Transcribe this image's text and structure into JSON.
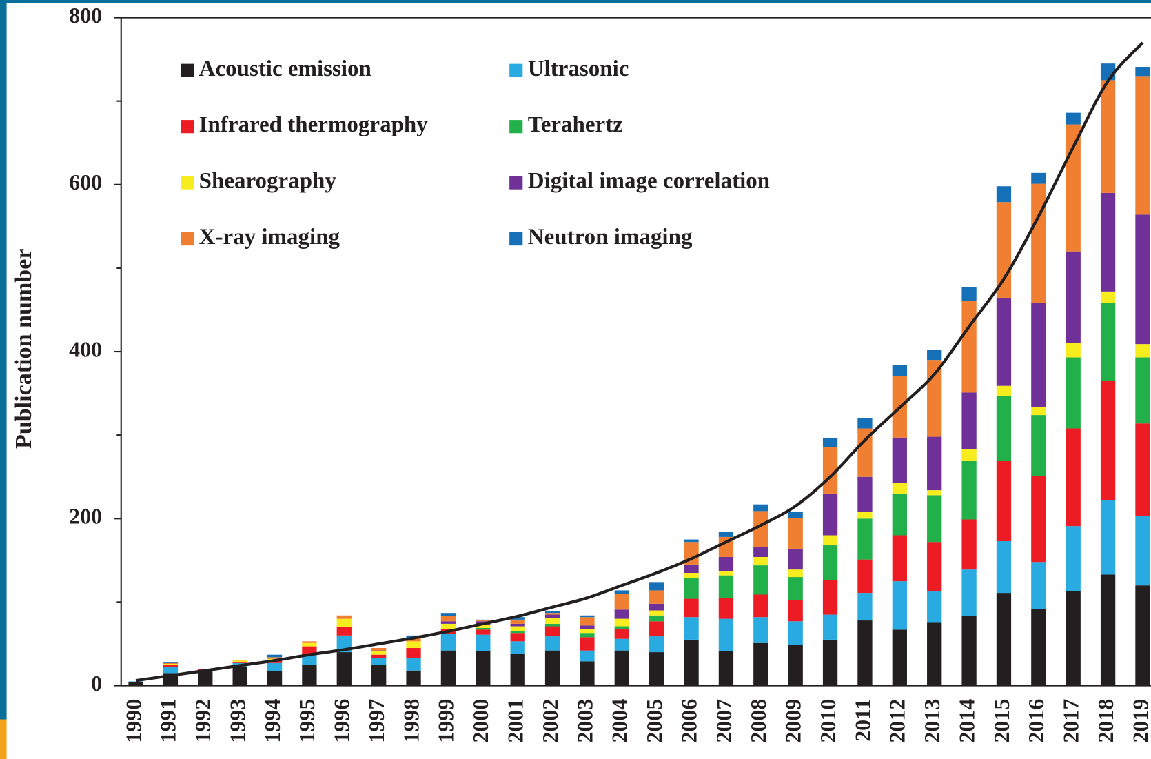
{
  "chart_data": {
    "type": "stacked_bar",
    "y_label": "Publication number",
    "categories": [
      "1990",
      "1991",
      "1992",
      "1993",
      "1994",
      "1995",
      "1996",
      "1997",
      "1998",
      "1999",
      "2000",
      "2001",
      "2002",
      "2003",
      "2004",
      "2005",
      "2006",
      "2007",
      "2008",
      "2009",
      "2010",
      "2011",
      "2012",
      "2013",
      "2014",
      "2015",
      "2016",
      "2017",
      "2018",
      "2019"
    ],
    "series": [
      {
        "name": "Acoustic emission",
        "color": "#231f20",
        "values": [
          4,
          15,
          17,
          22,
          17,
          25,
          40,
          25,
          18,
          42,
          41,
          38,
          42,
          29,
          42,
          40,
          55,
          41,
          51,
          49,
          55,
          78,
          67,
          76,
          83,
          111,
          92,
          113,
          133,
          120
        ]
      },
      {
        "name": "Ultrasonic",
        "color": "#29abe2",
        "values": [
          1,
          7,
          1,
          5,
          10,
          12,
          20,
          8,
          15,
          20,
          20,
          15,
          17,
          13,
          14,
          19,
          27,
          39,
          31,
          28,
          30,
          33,
          58,
          37,
          56,
          62,
          56,
          78,
          89,
          83
        ]
      },
      {
        "name": "Infrared thermography",
        "color": "#ed1c24",
        "values": [
          0,
          3,
          2,
          1,
          4,
          10,
          10,
          4,
          12,
          6,
          6,
          10,
          12,
          16,
          12,
          18,
          22,
          25,
          27,
          25,
          41,
          40,
          55,
          59,
          60,
          96,
          103,
          117,
          143,
          111
        ]
      },
      {
        "name": "Terahertz",
        "color": "#22b04b",
        "values": [
          0,
          0,
          0,
          0,
          0,
          0,
          0,
          0,
          0,
          0,
          2,
          2,
          3,
          5,
          3,
          7,
          25,
          27,
          35,
          28,
          42,
          49,
          50,
          56,
          70,
          78,
          73,
          85,
          93,
          79
        ]
      },
      {
        "name": "Shearography",
        "color": "#f7ec1e",
        "values": [
          0,
          1,
          0,
          2,
          1,
          4,
          10,
          4,
          8,
          6,
          4,
          6,
          7,
          5,
          9,
          6,
          6,
          5,
          10,
          9,
          12,
          8,
          13,
          6,
          14,
          12,
          10,
          17,
          14,
          16
        ]
      },
      {
        "name": "Digital image correlation",
        "color": "#6f3198",
        "values": [
          0,
          0,
          0,
          0,
          0,
          0,
          0,
          1,
          0,
          3,
          4,
          3,
          4,
          4,
          11,
          8,
          10,
          17,
          12,
          25,
          50,
          42,
          54,
          64,
          68,
          105,
          124,
          110,
          118,
          155
        ]
      },
      {
        "name": "X-ray imaging",
        "color": "#f07f32",
        "values": [
          0,
          1,
          0,
          1,
          2,
          2,
          4,
          3,
          4,
          6,
          1,
          5,
          2,
          10,
          19,
          16,
          27,
          24,
          43,
          37,
          56,
          58,
          74,
          92,
          110,
          115,
          143,
          152,
          135,
          166
        ]
      },
      {
        "name": "Neutron imaging",
        "color": "#1570b8",
        "values": [
          0,
          1,
          0,
          0,
          3,
          0,
          0,
          0,
          3,
          4,
          1,
          3,
          2,
          2,
          4,
          10,
          3,
          6,
          8,
          7,
          10,
          12,
          13,
          12,
          16,
          19,
          13,
          14,
          20,
          11
        ]
      }
    ],
    "trend_line": {
      "color": "#231f20",
      "values": [
        6,
        12,
        18,
        24,
        30,
        37,
        43,
        50,
        57,
        65,
        74,
        83,
        94,
        105,
        120,
        135,
        152,
        172,
        192,
        215,
        250,
        294,
        333,
        373,
        430,
        487,
        562,
        645,
        724,
        770
      ]
    },
    "ylim": [
      0,
      800
    ],
    "yticks": [
      0,
      200,
      400,
      600,
      800
    ],
    "minor_yticks": [
      100,
      300,
      500,
      700
    ],
    "legend": "top-left"
  }
}
